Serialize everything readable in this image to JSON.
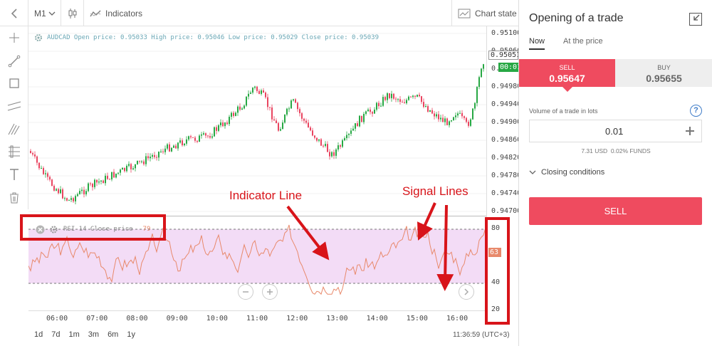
{
  "toolbar": {
    "back_icon": "chevron-left-icon",
    "timeframe": "M1",
    "indicators_label": "Indicators",
    "chart_state_label": "Chart state"
  },
  "chart": {
    "info": "AUDCAD Open price: 0.95033 High price: 0.95046 Low price: 0.95029 Close price: 0.95039",
    "price_ticks": [
      "0.95100",
      "0.95060",
      "0.95020",
      "0.94980",
      "0.94940",
      "0.94900",
      "0.94860",
      "0.94820",
      "0.94780",
      "0.94740",
      "0.94700"
    ],
    "current_price": "0.95051",
    "timer": "00:01",
    "bid_color": "#e94560",
    "ask_color": "#27a844"
  },
  "rsi": {
    "label": "RSI 14 Close price",
    "value": "79",
    "current_value": "63",
    "ticks": [
      "80",
      "60",
      "40",
      "20"
    ],
    "band_upper": 70,
    "band_lower": 30,
    "fill_color": "#f3dcf6",
    "line_color": "#e8896b"
  },
  "time_axis": [
    "06:00",
    "07:00",
    "08:00",
    "09:00",
    "10:00",
    "11:00",
    "12:00",
    "13:00",
    "14:00",
    "15:00",
    "16:00"
  ],
  "bottom": {
    "ranges": [
      "1d",
      "7d",
      "1m",
      "3m",
      "6m",
      "1y"
    ],
    "clock": "11:36:59 (UTC+3)"
  },
  "annotations": {
    "indicator_line": "Indicator Line",
    "signal_lines": "Signal Lines"
  },
  "panel": {
    "title": "Opening of a trade",
    "tabs": [
      "Now",
      "At the price"
    ],
    "sell_label": "SELL",
    "sell_price": "0.95647",
    "buy_label": "BUY",
    "buy_price": "0.95655",
    "volume_label": "Volume of a trade in lots",
    "volume_value": "0.01",
    "funds_info": "7.31 USD  0.02% FUNDS",
    "closing_conditions": "Closing conditions",
    "sell_button": "SELL",
    "sell_color": "#ef4b5f"
  }
}
